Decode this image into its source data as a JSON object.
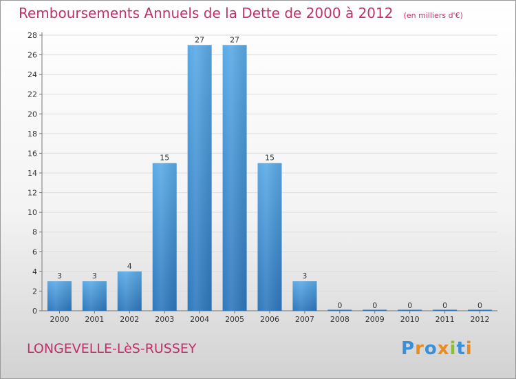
{
  "title": "Remboursements Annuels de la Dette de 2000 à 2012",
  "unit": "(en milliers d'€)",
  "commune": "LONGEVELLE-LèS-RUSSEY",
  "logo": {
    "text": "Proxiti",
    "letters": [
      {
        "char": "P",
        "color": "#3a8fd6"
      },
      {
        "char": "r",
        "color": "#e98b1e"
      },
      {
        "char": "o",
        "color": "#3a8fd6"
      },
      {
        "char": "x",
        "color": "#e98b1e"
      },
      {
        "char": "i",
        "color": "#8cbf2f"
      },
      {
        "char": "t",
        "color": "#3a8fd6"
      },
      {
        "char": "i",
        "color": "#e98b1e"
      }
    ]
  },
  "colors": {
    "bar_top": "#5aaae6",
    "bar_bottom": "#2e78bd",
    "accent": "#c0306a",
    "axis_tick_text": "#333333",
    "grid": "#dddddd"
  },
  "chart_data": {
    "type": "bar",
    "categories": [
      "2000",
      "2001",
      "2002",
      "2003",
      "2004",
      "2005",
      "2006",
      "2007",
      "2008",
      "2009",
      "2010",
      "2011",
      "2012"
    ],
    "values": [
      3,
      3,
      4,
      15,
      27,
      27,
      15,
      3,
      0,
      0,
      0,
      0,
      0
    ],
    "data_labels": [
      "3",
      "3",
      "4",
      "15",
      "27",
      "27",
      "15",
      "3",
      "0",
      "0",
      "0",
      "0",
      "0"
    ],
    "ylim": [
      0,
      28
    ],
    "yticks": [
      0,
      2,
      4,
      6,
      8,
      10,
      12,
      14,
      16,
      18,
      20,
      22,
      24,
      26,
      28
    ],
    "grid": true,
    "legend": "none"
  }
}
